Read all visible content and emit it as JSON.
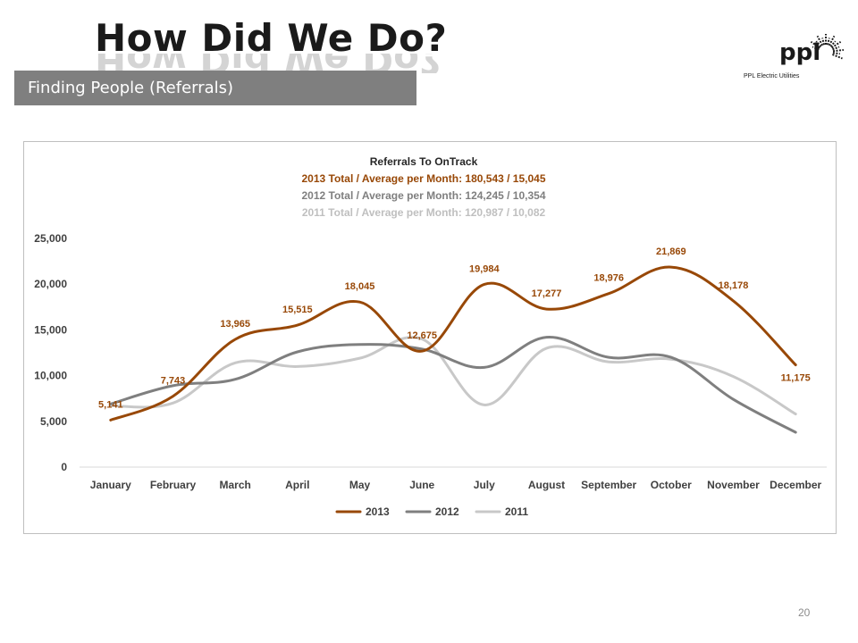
{
  "page": {
    "title": "How Did We Do?",
    "section_label": "Finding People (Referrals)",
    "page_number": "20"
  },
  "logo": {
    "name": "ppl",
    "subtitle": "PPL Electric Utilities",
    "icon": "sunburst-logo-icon"
  },
  "colors": {
    "s2013": "#984807",
    "s2012": "#7f7f7f",
    "s2011": "#c8c8c8",
    "section_bar": "#7f7f7f"
  },
  "chart_data": {
    "type": "line",
    "title": "Referrals To OnTrack",
    "subtitles": [
      "2013 Total / Average per Month: 180,543 / 15,045",
      "2012 Total / Average per Month: 124,245 / 10,354",
      "2011 Total / Average per Month: 120,987 / 10,082"
    ],
    "categories": [
      "January",
      "February",
      "March",
      "April",
      "May",
      "June",
      "July",
      "August",
      "September",
      "October",
      "November",
      "December"
    ],
    "ylim": [
      0,
      25000
    ],
    "yticks": [
      0,
      5000,
      10000,
      15000,
      20000,
      25000
    ],
    "ytick_labels": [
      "0",
      "5,000",
      "10,000",
      "15,000",
      "20,000",
      "25,000"
    ],
    "series": [
      {
        "name": "2013",
        "color": "#984807",
        "values": [
          5141,
          7743,
          13965,
          15515,
          18045,
          12675,
          19984,
          17277,
          18976,
          21869,
          18178,
          11175
        ],
        "labels": [
          "5,141",
          "7,743",
          "13,965",
          "15,515",
          "18,045",
          "12,675",
          "19,984",
          "17,277",
          "18,976",
          "21,869",
          "18,178",
          "11,175"
        ]
      },
      {
        "name": "2012",
        "color": "#7f7f7f",
        "values": [
          6900,
          8900,
          9600,
          12600,
          13400,
          12900,
          10900,
          14200,
          12000,
          12000,
          7400,
          3800
        ]
      },
      {
        "name": "2011",
        "color": "#c8c8c8",
        "values": [
          6700,
          7000,
          11400,
          11000,
          11900,
          14000,
          6800,
          13000,
          11500,
          11800,
          9900,
          5800
        ]
      }
    ],
    "legend_position": "bottom",
    "grid": false
  }
}
